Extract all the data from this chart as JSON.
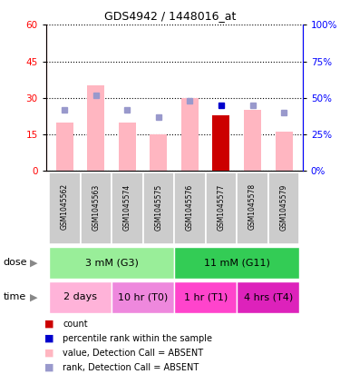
{
  "title": "GDS4942 / 1448016_at",
  "samples": [
    "GSM1045562",
    "GSM1045563",
    "GSM1045574",
    "GSM1045575",
    "GSM1045576",
    "GSM1045577",
    "GSM1045578",
    "GSM1045579"
  ],
  "pink_bar_heights": [
    20,
    35,
    20,
    15,
    30,
    23,
    25,
    16
  ],
  "red_bar_heights": [
    0,
    0,
    0,
    0,
    0,
    23,
    0,
    0
  ],
  "blue_square_y": [
    25,
    31,
    25,
    22,
    30,
    27,
    27,
    24
  ],
  "light_blue_square_y": [
    25,
    31,
    25,
    22,
    29,
    null,
    27,
    24
  ],
  "dark_blue_square_idx": 5,
  "ylim_left": [
    0,
    60
  ],
  "ylim_right": [
    0,
    100
  ],
  "yticks_left": [
    0,
    15,
    30,
    45,
    60
  ],
  "yticks_right": [
    0,
    25,
    50,
    75,
    100
  ],
  "dose_colors": [
    "#99EE99",
    "#33CC55"
  ],
  "dose_groups": [
    {
      "label": "3 mM (G3)",
      "start": 0,
      "end": 3
    },
    {
      "label": "11 mM (G11)",
      "start": 4,
      "end": 7
    }
  ],
  "time_colors": [
    "#FFB3D9",
    "#EE88DD",
    "#FF44CC",
    "#DD22BB"
  ],
  "time_groups": [
    {
      "label": "2 days",
      "start": 0,
      "end": 1
    },
    {
      "label": "10 hr (T0)",
      "start": 2,
      "end": 3
    },
    {
      "label": "1 hr (T1)",
      "start": 4,
      "end": 5
    },
    {
      "label": "4 hrs (T4)",
      "start": 6,
      "end": 7
    }
  ],
  "pink_bar_color": "#FFB6C1",
  "red_bar_color": "#CC0000",
  "blue_sq_color": "#0000CC",
  "light_blue_sq_color": "#9999CC",
  "sample_box_color": "#CCCCCC",
  "legend_labels": [
    "count",
    "percentile rank within the sample",
    "value, Detection Call = ABSENT",
    "rank, Detection Call = ABSENT"
  ]
}
